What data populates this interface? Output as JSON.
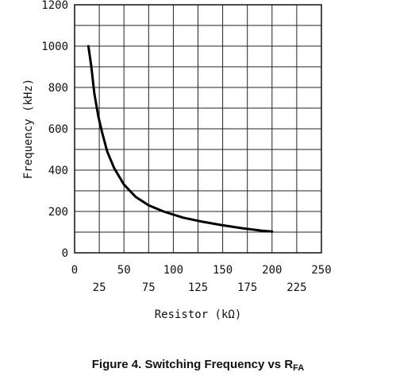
{
  "chart_data": {
    "type": "line",
    "title": "",
    "xlabel": "Resistor (kΩ)",
    "ylabel": "Frequency (kHz)",
    "xlim": [
      0,
      250
    ],
    "ylim": [
      0,
      1200
    ],
    "grid": true,
    "x_ticks_upper": [
      "0",
      "50",
      "100",
      "150",
      "200",
      "250"
    ],
    "x_ticks_lower": [
      "25",
      "75",
      "125",
      "175",
      "225"
    ],
    "y_ticks": [
      "0",
      "200",
      "400",
      "600",
      "800",
      "1000",
      "1200"
    ],
    "series": [
      {
        "color": "#000000",
        "x": [
          14,
          17,
          20,
          24,
          28,
          33,
          40,
          50,
          62,
          75,
          90,
          110,
          130,
          150,
          170,
          190,
          200
        ],
        "y": [
          1000,
          900,
          770,
          660,
          580,
          490,
          410,
          330,
          270,
          230,
          200,
          170,
          150,
          133,
          119,
          107,
          103
        ]
      }
    ]
  },
  "caption": {
    "text": "Figure 4. Switching Frequency vs R",
    "subscript": "FA"
  }
}
